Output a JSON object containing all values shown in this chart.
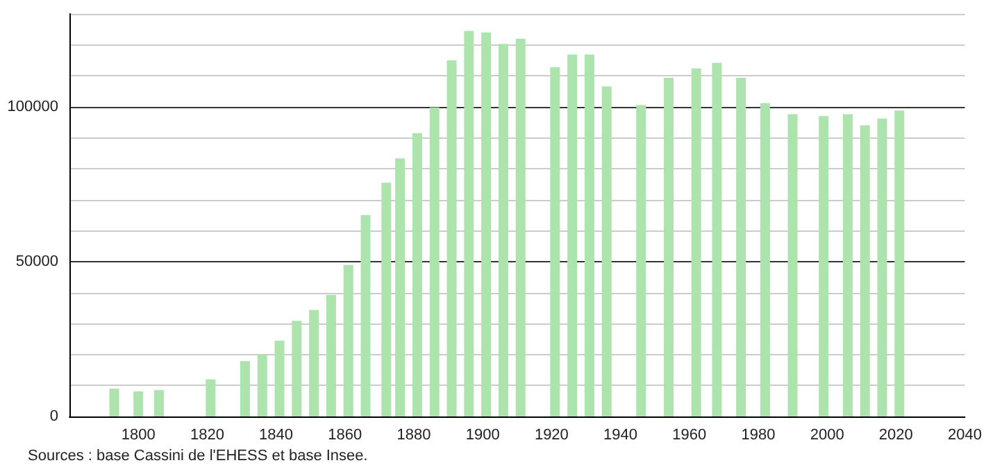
{
  "chart_data": {
    "type": "bar",
    "color": "#ade3ad",
    "x": [
      1793,
      1800,
      1806,
      1821,
      1831,
      1836,
      1841,
      1846,
      1851,
      1856,
      1861,
      1866,
      1872,
      1876,
      1881,
      1886,
      1891,
      1896,
      1901,
      1906,
      1911,
      1921,
      1926,
      1931,
      1936,
      1946,
      1954,
      1962,
      1968,
      1975,
      1982,
      1990,
      1999,
      2006,
      2011,
      2016,
      2021
    ],
    "values": [
      9000,
      8100,
      8500,
      12000,
      17900,
      20000,
      24500,
      30900,
      34400,
      39200,
      48900,
      65000,
      75500,
      83300,
      91500,
      99800,
      115000,
      124500,
      124000,
      120300,
      122000,
      112800,
      116900,
      116900,
      106600,
      100600,
      109400,
      112400,
      114200,
      109400,
      101200,
      97600,
      97000,
      97600,
      94000,
      96200,
      98800
    ],
    "xlim": [
      1780,
      2040
    ],
    "xticks": [
      1800,
      1820,
      1840,
      1860,
      1880,
      1900,
      1920,
      1940,
      1960,
      1980,
      2000,
      2020,
      2040
    ],
    "ylim": [
      0,
      130000
    ],
    "yticks": [
      0,
      {
        "value": 10000,
        "label": null
      },
      {
        "value": 20000,
        "label": null
      },
      {
        "value": 30000,
        "label": null
      },
      {
        "value": 40000,
        "label": null
      },
      50000,
      {
        "value": 60000,
        "label": null
      },
      {
        "value": 70000,
        "label": null
      },
      {
        "value": 80000,
        "label": null
      },
      {
        "value": 90000,
        "label": null
      },
      100000,
      {
        "value": 110000,
        "label": null
      },
      {
        "value": 120000,
        "label": null
      },
      {
        "value": 130000,
        "label": null
      }
    ],
    "grid": "y",
    "annotations": [
      "Sources : base Cassini de l'EHESS et base Insee."
    ]
  }
}
